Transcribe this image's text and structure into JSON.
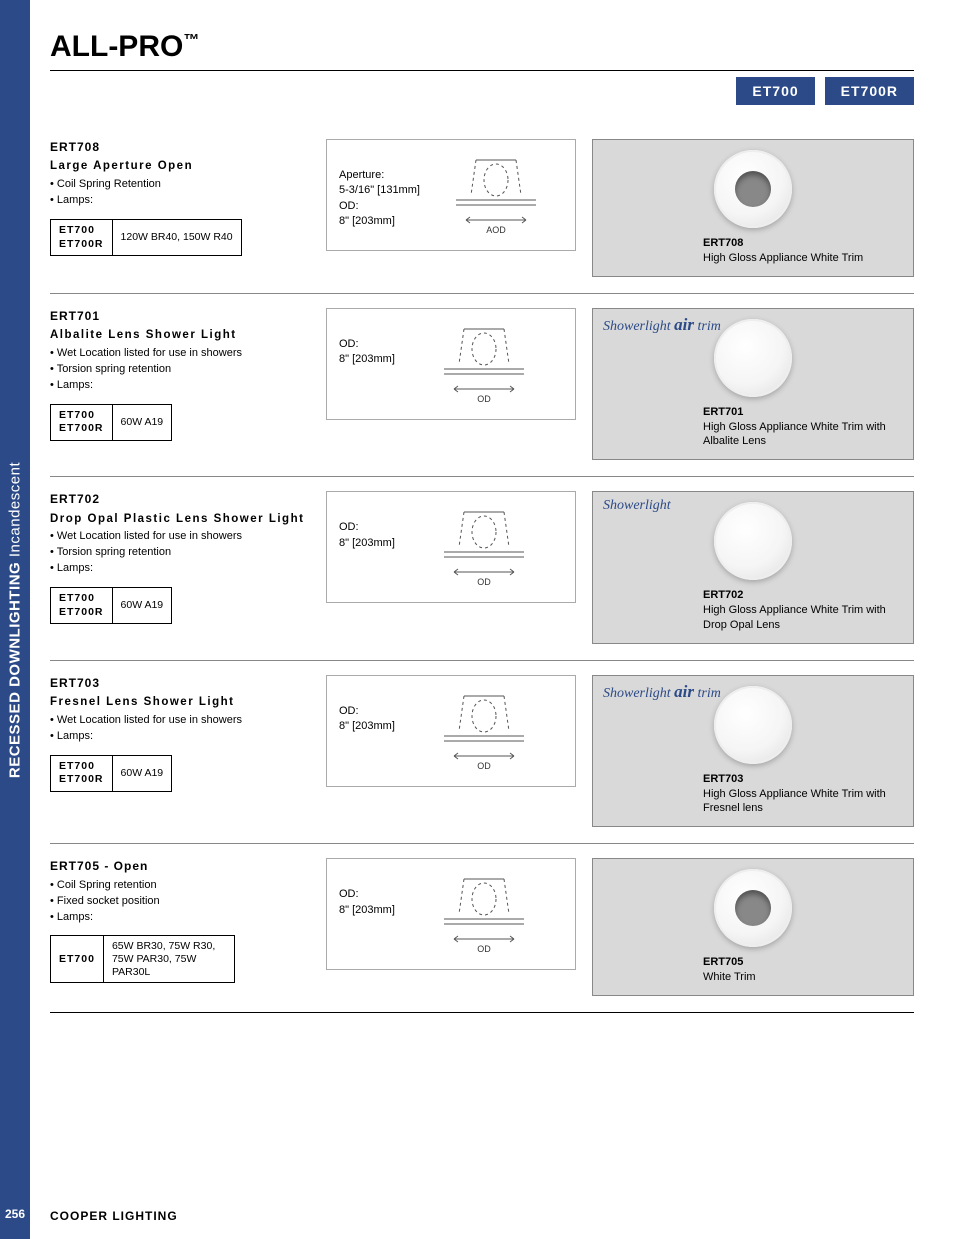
{
  "side_tab": {
    "bold": "RECESSED DOWNLIGHTING",
    "light": "Incandescent",
    "page_number": "256"
  },
  "brand": {
    "name": "ALL-PRO",
    "tm": "™"
  },
  "tags": [
    "ET700",
    "ET700R"
  ],
  "footer": "COOPER LIGHTING",
  "products": [
    {
      "code": "ERT708",
      "title": "Large Aperture Open",
      "bullets": [
        "Coil Spring Retention",
        "Lamps:"
      ],
      "lamp_models": [
        "ET700",
        "ET700R"
      ],
      "lamp_value": "120W BR40, 150W R40",
      "dims": [
        "Aperture:",
        "5-3/16\" [131mm]",
        "OD:",
        "8\" [203mm]"
      ],
      "dim_label": "A\nOD",
      "caption_code": "ERT708",
      "caption_text": "High Gloss Appliance White Trim",
      "badge": "",
      "trim_style": "open"
    },
    {
      "code": "ERT701",
      "title": "Albalite Lens Shower Light",
      "bullets": [
        "Wet Location listed for use in showers",
        "Torsion spring retention",
        "Lamps:"
      ],
      "lamp_models": [
        "ET700",
        "ET700R"
      ],
      "lamp_value": "60W A19",
      "dims": [
        "OD:",
        "8\" [203mm]"
      ],
      "dim_label": "OD",
      "caption_code": "ERT701",
      "caption_text": "High Gloss Appliance White Trim with Albalite Lens",
      "badge": "Showerlight air trim",
      "trim_style": "lens"
    },
    {
      "code": "ERT702",
      "title": "Drop Opal Plastic Lens Shower Light",
      "bullets": [
        "Wet Location listed for use in showers",
        "Torsion spring retention",
        "Lamps:"
      ],
      "lamp_models": [
        "ET700",
        "ET700R"
      ],
      "lamp_value": "60W A19",
      "dims": [
        "OD:",
        "8\" [203mm]"
      ],
      "dim_label": "OD",
      "caption_code": "ERT702",
      "caption_text": "High Gloss Appliance White Trim with Drop Opal Lens",
      "badge": "Showerlight",
      "trim_style": "lens"
    },
    {
      "code": "ERT703",
      "title": "Fresnel Lens Shower Light",
      "bullets": [
        "Wet Location listed for use in showers",
        "Lamps:"
      ],
      "lamp_models": [
        "ET700",
        "ET700R"
      ],
      "lamp_value": "60W A19",
      "dims": [
        "OD:",
        "8\" [203mm]"
      ],
      "dim_label": "OD",
      "caption_code": "ERT703",
      "caption_text": "High Gloss Appliance White Trim with Fresnel lens",
      "badge": "Showerlight air trim",
      "trim_style": "lens"
    },
    {
      "code": "ERT705 - Open",
      "title": "",
      "bullets": [
        "Coil Spring retention",
        "Fixed socket position",
        "Lamps:"
      ],
      "lamp_models": [
        "ET700"
      ],
      "lamp_value": "65W BR30, 75W R30, 75W PAR30, 75W PAR30L",
      "dims": [
        "OD:",
        "8\" [203mm]"
      ],
      "dim_label": "OD",
      "caption_code": "ERT705",
      "caption_text": "White Trim",
      "badge": "",
      "trim_style": "open"
    }
  ]
}
